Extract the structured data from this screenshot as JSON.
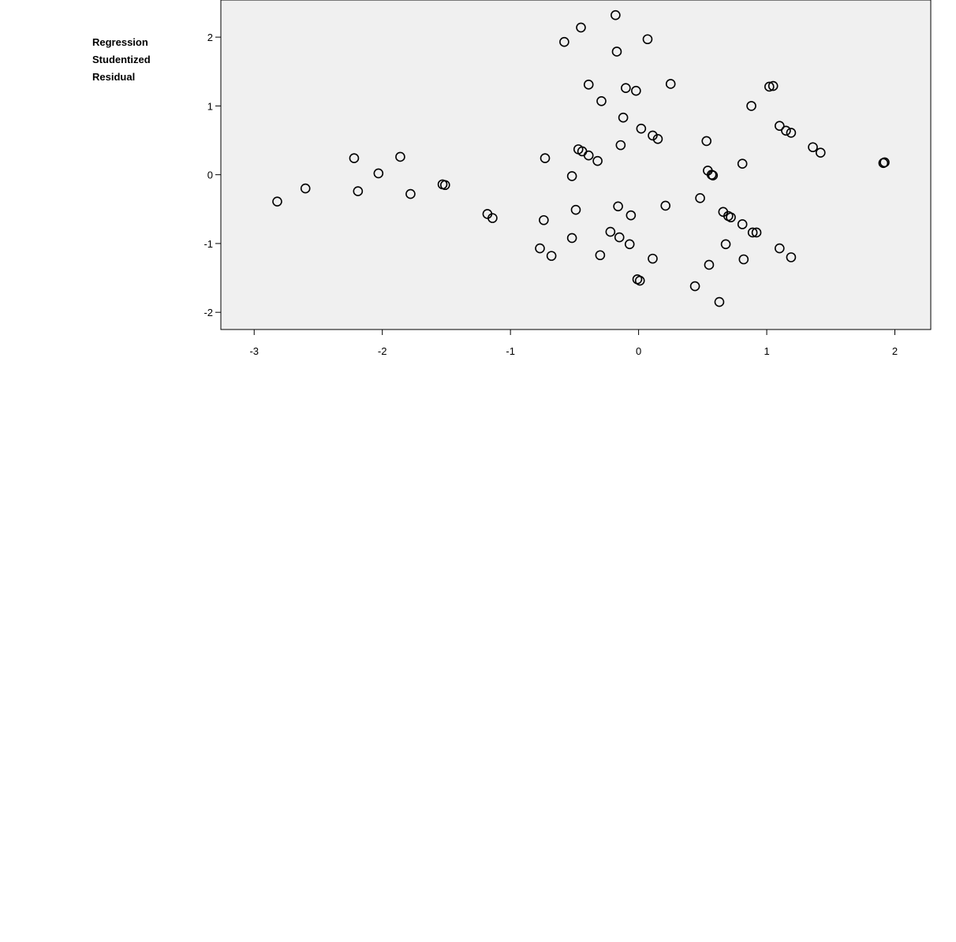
{
  "chart_data": {
    "type": "scatter",
    "ylabel": "Regression Studentized Residual",
    "xlim": [
      -3.26,
      2.28
    ],
    "ylim": [
      -2.25,
      2.54
    ],
    "xticks": [
      -3,
      -2,
      -1,
      0,
      1,
      2
    ],
    "yticks": [
      -2,
      -1,
      0,
      1,
      2
    ],
    "background": "#f0f0f0",
    "color": "#000000",
    "x": [
      -2.82,
      -2.6,
      -2.22,
      -2.19,
      -2.03,
      -1.86,
      -1.78,
      -1.53,
      -1.51,
      -1.18,
      -1.14,
      -0.77,
      -0.74,
      -0.73,
      -0.68,
      -0.58,
      -0.52,
      -0.52,
      -0.49,
      -0.47,
      -0.45,
      -0.44,
      -0.39,
      -0.39,
      -0.32,
      -0.3,
      -0.29,
      -0.22,
      -0.18,
      -0.17,
      -0.16,
      -0.15,
      -0.14,
      -0.12,
      -0.1,
      -0.07,
      -0.06,
      -0.02,
      -0.01,
      0.01,
      0.02,
      0.07,
      0.11,
      0.11,
      0.15,
      0.21,
      0.25,
      0.44,
      0.48,
      0.53,
      0.54,
      0.55,
      0.57,
      0.58,
      0.63,
      0.66,
      0.68,
      0.7,
      0.72,
      0.81,
      0.81,
      0.82,
      0.88,
      0.89,
      0.92,
      1.02,
      1.05,
      1.1,
      1.1,
      1.15,
      1.19,
      1.19,
      1.36,
      1.42,
      1.91,
      1.92
    ],
    "values": [
      -0.39,
      -0.2,
      0.24,
      -0.24,
      0.02,
      0.26,
      -0.28,
      -0.14,
      -0.15,
      -0.57,
      -0.63,
      -1.07,
      -0.66,
      0.24,
      -1.18,
      1.93,
      -0.92,
      -0.02,
      -0.51,
      0.37,
      2.14,
      0.34,
      1.31,
      0.28,
      0.2,
      -1.17,
      1.07,
      -0.83,
      2.32,
      1.79,
      -0.46,
      -0.91,
      0.43,
      0.83,
      1.26,
      -1.01,
      -0.59,
      1.22,
      -1.52,
      -1.54,
      0.67,
      1.97,
      0.57,
      -1.22,
      0.52,
      -0.45,
      1.32,
      -1.62,
      -0.34,
      0.49,
      0.06,
      -1.31,
      0.0,
      -0.01,
      -1.85,
      -0.54,
      -1.01,
      -0.6,
      -0.62,
      -0.72,
      0.16,
      -1.23,
      1.0,
      -0.84,
      -0.84,
      1.28,
      1.29,
      0.71,
      -1.07,
      0.64,
      0.61,
      -1.2,
      0.4,
      0.32,
      0.17,
      0.18
    ]
  }
}
